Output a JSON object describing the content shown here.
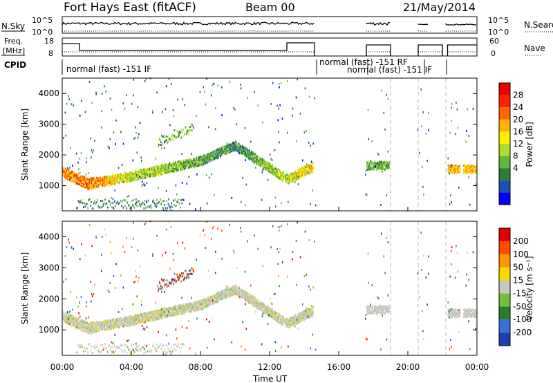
{
  "header": {
    "title": "Fort Hays East (fitACF)",
    "beam": "Beam 00",
    "date": "21/May/2014"
  },
  "time_axis": {
    "label": "Time UT",
    "ticks": [
      "00:00",
      "04:00",
      "08:00",
      "12:00",
      "16:00",
      "20:00",
      "00:00"
    ]
  },
  "top_panels": {
    "nsky": {
      "label": "N.Sky",
      "ticks_left": [
        "10^5",
        "10^0"
      ],
      "ticks_right": [
        "10^5",
        "10^0"
      ],
      "right_label": "N.Search"
    },
    "freq": {
      "label_line1": "Freq.",
      "label_line2": "[MHz]",
      "ticks_left": [
        "18",
        "8"
      ],
      "ticks_right": [
        "60",
        "0"
      ],
      "right_label": "Nave"
    },
    "cpid": {
      "label": "CPID",
      "entries": [
        "normal (fast) -151 IF",
        "normal (fast) -151 RF",
        "normal (fast) -151 IF"
      ]
    }
  },
  "power_panel": {
    "ylabel": "Slant Range [km]",
    "yticks": [
      "4000",
      "3000",
      "2000",
      "1000"
    ],
    "colorbar": {
      "label": "Power [dB]",
      "ticks": [
        "28",
        "24",
        "20",
        "16",
        "12",
        "8",
        "4"
      ],
      "colors": [
        "#0000ff",
        "#1f4fb0",
        "#2d7a3a",
        "#62b541",
        "#aadd2f",
        "#ffee00",
        "#ffb300",
        "#ff6600",
        "#ff2200",
        "#ee0000"
      ]
    }
  },
  "velocity_panel": {
    "ylabel": "Slant Range [km]",
    "yticks": [
      "4000",
      "3000",
      "2000",
      "1000"
    ],
    "colorbar": {
      "label": "Velocity [m s⁻¹]",
      "ticks": [
        "200",
        "100",
        "50",
        "15",
        "-15",
        "-50",
        "-100",
        "-200"
      ],
      "colors": [
        "#1c3fb5",
        "#3a6fd6",
        "#2c7a2a",
        "#6fc23e",
        "#c8c8c0",
        "#ffd800",
        "#ff9500",
        "#ff4a00",
        "#e60000"
      ]
    }
  },
  "chart_data": {
    "type": "heatmap",
    "xlabel": "Time UT",
    "ylabel": "Slant Range [km]",
    "x_range_hours": [
      0,
      24
    ],
    "y_range_km": [
      180,
      4500
    ],
    "data_gaps_ut_hours": [
      [
        14.7,
        17.5
      ],
      [
        19.0,
        20.5
      ],
      [
        21.2,
        22.2
      ],
      [
        23.0,
        23.2
      ]
    ],
    "features": [
      {
        "name": "near range band",
        "t": [
          0,
          1.5,
          4,
          8,
          10,
          13,
          14.5
        ],
        "range_km": [
          1450,
          1050,
          1300,
          1800,
          2300,
          1200,
          1600
        ],
        "power_db": [
          20,
          22,
          14,
          10,
          8,
          14,
          18
        ]
      },
      {
        "name": "upper band",
        "t": [
          5.5,
          6.5,
          7.5
        ],
        "range_km": [
          2400,
          2700,
          2900
        ],
        "power_db": [
          10,
          10,
          8
        ]
      },
      {
        "name": "late band",
        "t": [
          17.7,
          18.9
        ],
        "range_km": [
          1650,
          1650
        ],
        "power_db": [
          10,
          10
        ]
      },
      {
        "name": "evening band",
        "t": [
          22.3,
          23.9
        ],
        "range_km": [
          1550,
          1500
        ],
        "power_db": [
          18,
          20
        ]
      }
    ],
    "power_scale_db": [
      4,
      28
    ],
    "velocity_scale_ms": [
      -200,
      200
    ]
  }
}
